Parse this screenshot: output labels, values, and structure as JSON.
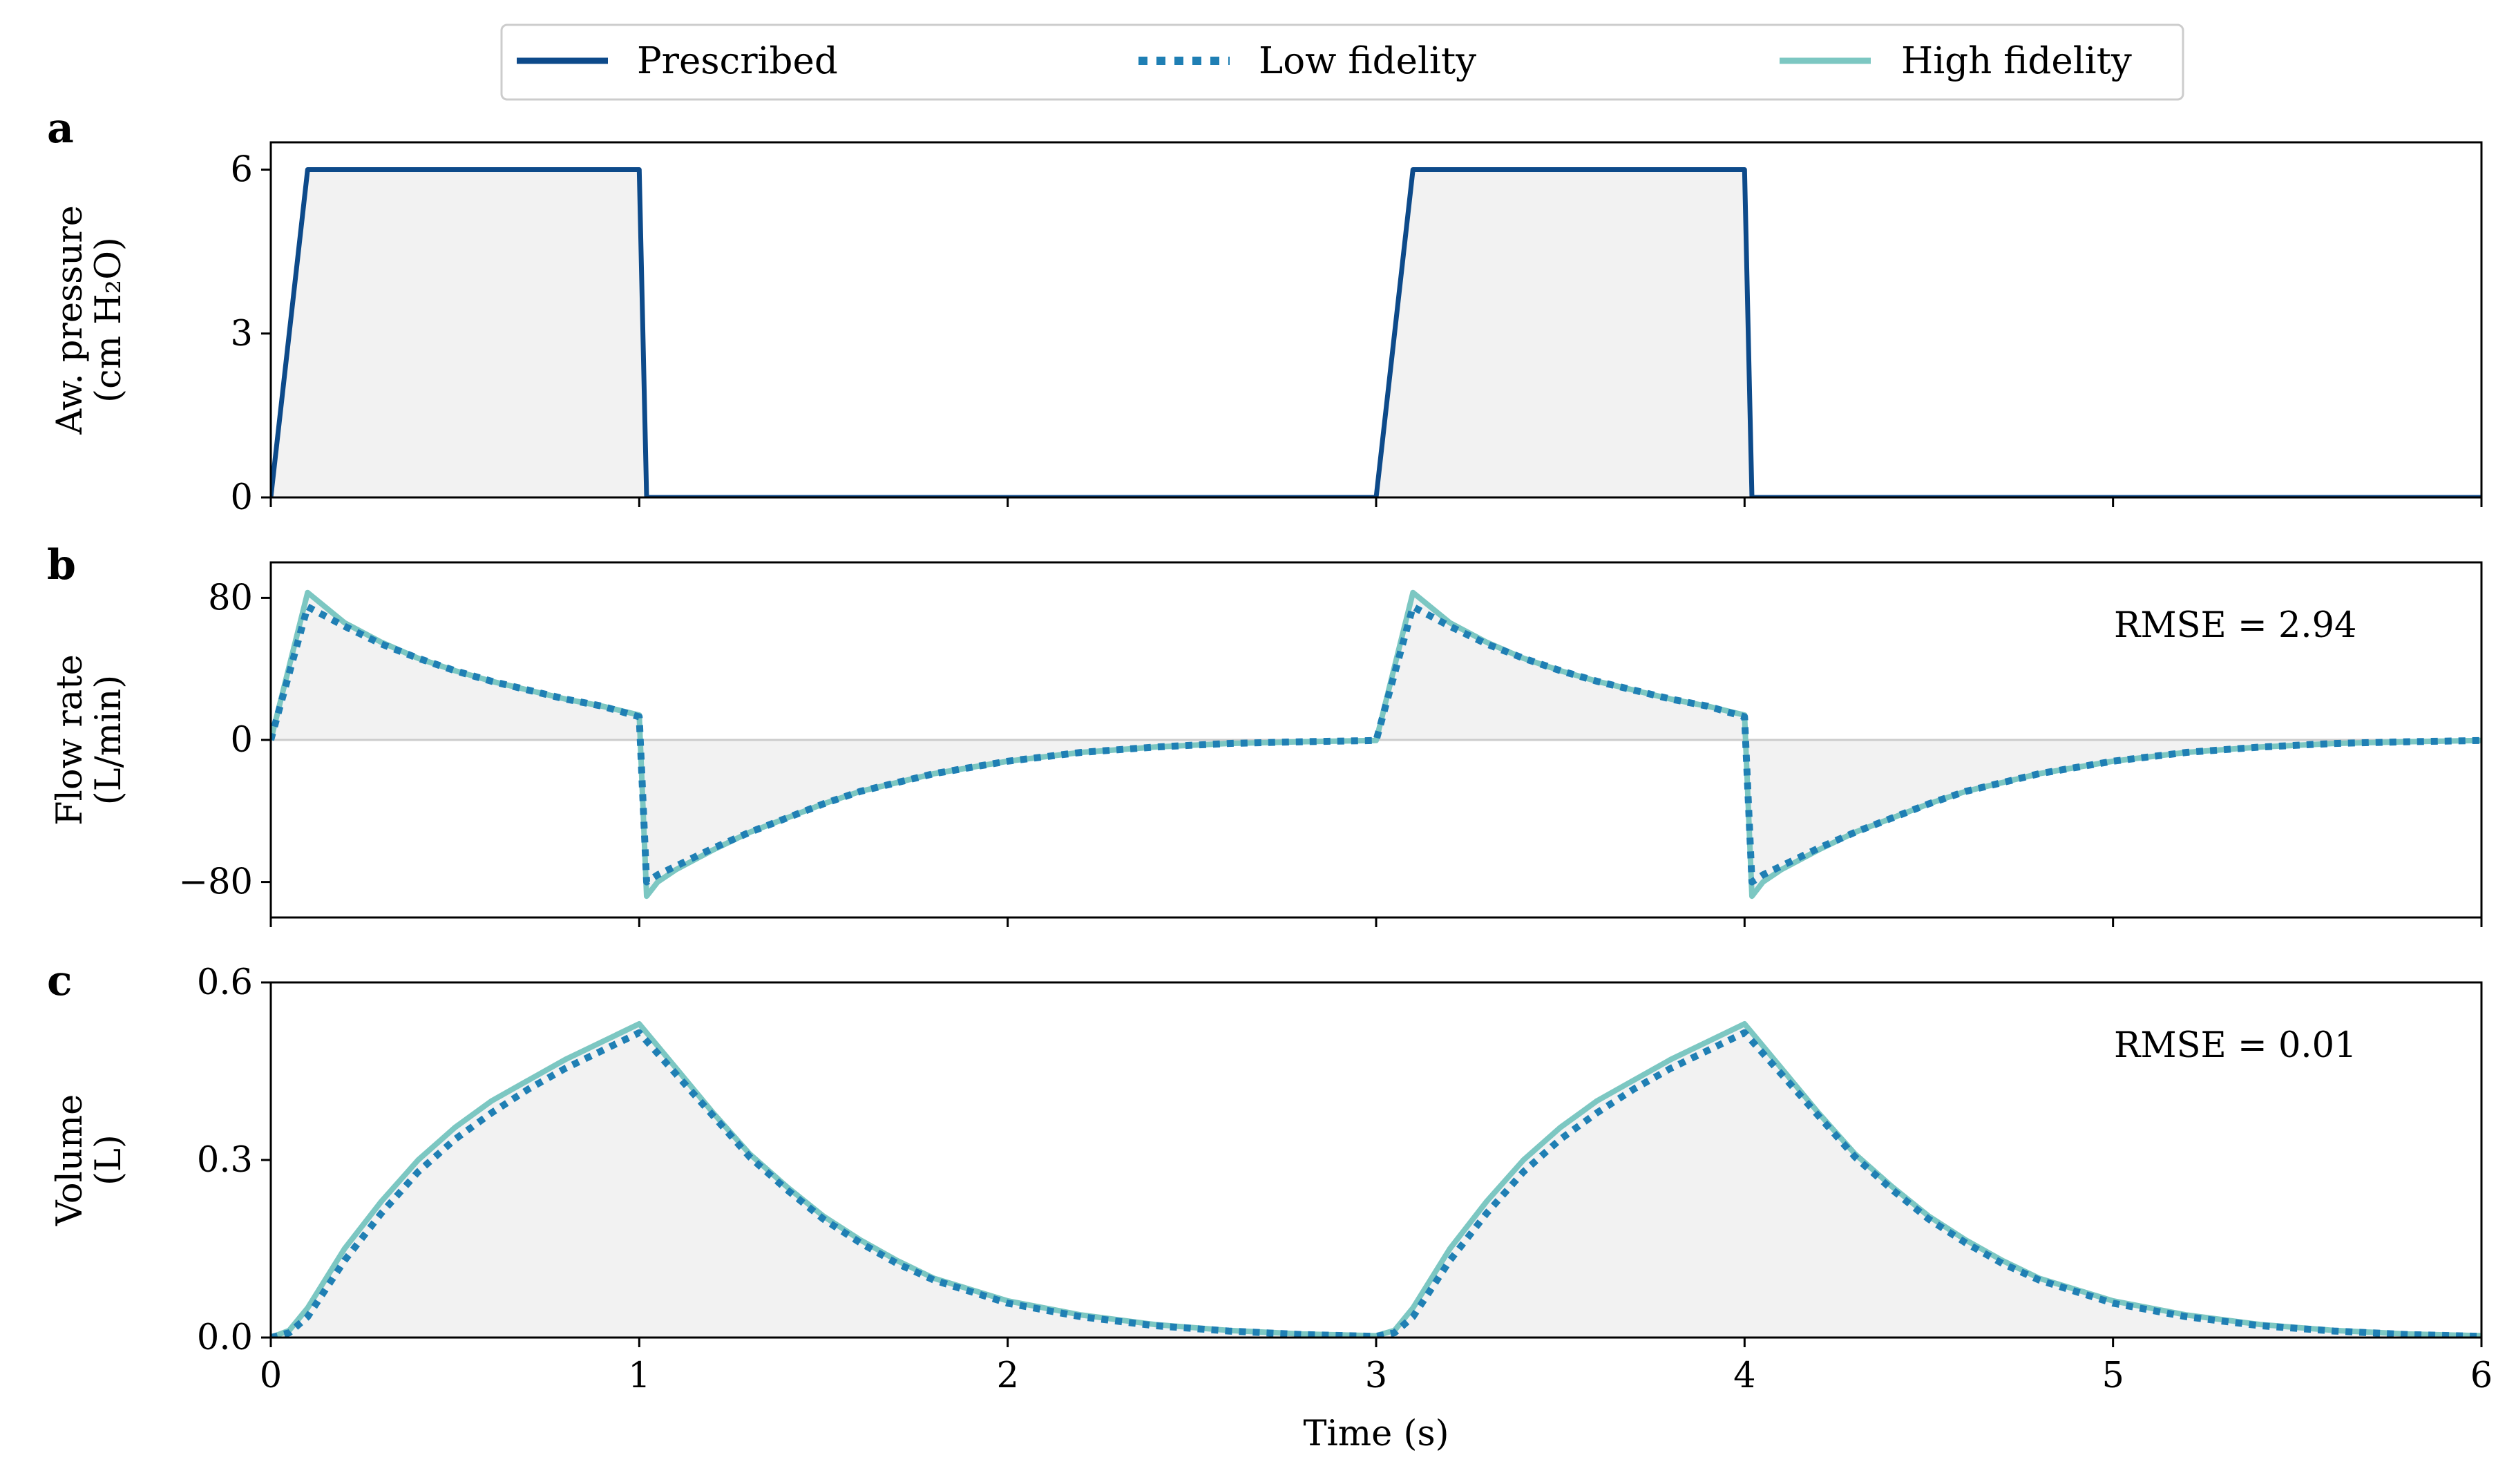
{
  "legend": {
    "prescribed": "Prescribed",
    "low": "Low fidelity",
    "high": "High fidelity"
  },
  "colors": {
    "prescribed": "#0d4a8a",
    "low": "#1f7fb4",
    "high": "#7cc7c2",
    "fill": "#f2f2f2",
    "zero_line": "#cccccc"
  },
  "xlabel": "Time (s)",
  "chart_data": [
    {
      "type": "line",
      "panel_letter": "a",
      "ylabel": "Aw. pressure (cm H₂O)",
      "ylabel_line1": "Aw. pressure",
      "ylabel_line2": "(cm H₂O)",
      "xlim": [
        0,
        6
      ],
      "ylim": [
        0,
        6.5
      ],
      "xticks": [
        0,
        1,
        2,
        3,
        4,
        5,
        6
      ],
      "yticks": [
        0,
        3,
        6
      ],
      "ytick_labels": [
        "0",
        "3",
        "6"
      ],
      "show_x_ticklabels": false,
      "rmse": "",
      "series": [
        {
          "name": "Prescribed",
          "style": "solid",
          "points": [
            [
              0,
              0
            ],
            [
              0.1,
              6
            ],
            [
              1.0,
              6
            ],
            [
              1.02,
              0
            ],
            [
              3.0,
              0
            ],
            [
              3.1,
              6
            ],
            [
              4.0,
              6
            ],
            [
              4.02,
              0
            ],
            [
              6.0,
              0
            ]
          ]
        }
      ]
    },
    {
      "type": "line",
      "panel_letter": "b",
      "ylabel": "Flow rate (L/min)",
      "ylabel_line1": "Flow rate",
      "ylabel_line2": "(L/min)",
      "xlim": [
        0,
        6
      ],
      "ylim": [
        -100,
        100
      ],
      "xticks": [
        0,
        1,
        2,
        3,
        4,
        5,
        6
      ],
      "yticks": [
        -80,
        0,
        80
      ],
      "ytick_labels": [
        "−80",
        "0",
        "80"
      ],
      "show_x_ticklabels": false,
      "zero_line": true,
      "rmse": "RMSE = 2.94",
      "series": [
        {
          "name": "High fidelity",
          "style": "solid",
          "points": [
            [
              0,
              0
            ],
            [
              0.1,
              83
            ],
            [
              0.2,
              66
            ],
            [
              0.3,
              55
            ],
            [
              0.4,
              46
            ],
            [
              0.5,
              39
            ],
            [
              0.6,
              33
            ],
            [
              0.7,
              28
            ],
            [
              0.8,
              23
            ],
            [
              0.9,
              19
            ],
            [
              1.0,
              14
            ],
            [
              1.02,
              -88
            ],
            [
              1.05,
              -80
            ],
            [
              1.1,
              -73
            ],
            [
              1.2,
              -62
            ],
            [
              1.3,
              -52
            ],
            [
              1.4,
              -44
            ],
            [
              1.5,
              -36
            ],
            [
              1.6,
              -29
            ],
            [
              1.7,
              -24
            ],
            [
              1.8,
              -19
            ],
            [
              2.0,
              -12
            ],
            [
              2.2,
              -7
            ],
            [
              2.4,
              -4
            ],
            [
              2.6,
              -2
            ],
            [
              2.8,
              -1
            ],
            [
              3.0,
              -0.3
            ],
            [
              3.1,
              83
            ],
            [
              3.2,
              66
            ],
            [
              3.3,
              55
            ],
            [
              3.4,
              46
            ],
            [
              3.5,
              39
            ],
            [
              3.6,
              33
            ],
            [
              3.7,
              28
            ],
            [
              3.8,
              23
            ],
            [
              3.9,
              19
            ],
            [
              4.0,
              14
            ],
            [
              4.02,
              -88
            ],
            [
              4.05,
              -80
            ],
            [
              4.1,
              -73
            ],
            [
              4.2,
              -62
            ],
            [
              4.3,
              -52
            ],
            [
              4.4,
              -44
            ],
            [
              4.5,
              -36
            ],
            [
              4.6,
              -29
            ],
            [
              4.7,
              -24
            ],
            [
              4.8,
              -19
            ],
            [
              5.0,
              -12
            ],
            [
              5.2,
              -7
            ],
            [
              5.4,
              -4
            ],
            [
              5.6,
              -2
            ],
            [
              5.8,
              -1
            ],
            [
              6.0,
              -0.3
            ]
          ]
        },
        {
          "name": "Low fidelity",
          "style": "dotted",
          "points": [
            [
              0,
              0
            ],
            [
              0.1,
              75
            ],
            [
              0.2,
              64
            ],
            [
              0.3,
              54
            ],
            [
              0.4,
              46
            ],
            [
              0.5,
              39
            ],
            [
              0.6,
              33
            ],
            [
              0.7,
              28
            ],
            [
              0.8,
              23
            ],
            [
              0.9,
              19
            ],
            [
              1.0,
              13
            ],
            [
              1.02,
              -80
            ],
            [
              1.05,
              -76
            ],
            [
              1.1,
              -71
            ],
            [
              1.2,
              -61
            ],
            [
              1.3,
              -52
            ],
            [
              1.4,
              -44
            ],
            [
              1.5,
              -36
            ],
            [
              1.6,
              -29
            ],
            [
              1.7,
              -24
            ],
            [
              1.8,
              -19
            ],
            [
              2.0,
              -12
            ],
            [
              2.2,
              -7
            ],
            [
              2.4,
              -4
            ],
            [
              2.6,
              -2
            ],
            [
              2.8,
              -1
            ],
            [
              3.0,
              -0.3
            ],
            [
              3.1,
              75
            ],
            [
              3.2,
              64
            ],
            [
              3.3,
              54
            ],
            [
              3.4,
              46
            ],
            [
              3.5,
              39
            ],
            [
              3.6,
              33
            ],
            [
              3.7,
              28
            ],
            [
              3.8,
              23
            ],
            [
              3.9,
              19
            ],
            [
              4.0,
              13
            ],
            [
              4.02,
              -80
            ],
            [
              4.05,
              -76
            ],
            [
              4.1,
              -71
            ],
            [
              4.2,
              -61
            ],
            [
              4.3,
              -52
            ],
            [
              4.4,
              -44
            ],
            [
              4.5,
              -36
            ],
            [
              4.6,
              -29
            ],
            [
              4.7,
              -24
            ],
            [
              4.8,
              -19
            ],
            [
              5.0,
              -12
            ],
            [
              5.2,
              -7
            ],
            [
              5.4,
              -4
            ],
            [
              5.6,
              -2
            ],
            [
              5.8,
              -1
            ],
            [
              6.0,
              -0.3
            ]
          ]
        }
      ]
    },
    {
      "type": "line",
      "panel_letter": "c",
      "ylabel": "Volume (L)",
      "ylabel_line1": "Volume",
      "ylabel_line2": "(L)",
      "xlim": [
        0,
        6
      ],
      "ylim": [
        0,
        0.6
      ],
      "xticks": [
        0,
        1,
        2,
        3,
        4,
        5,
        6
      ],
      "yticks": [
        0,
        0.3,
        0.6
      ],
      "ytick_labels": [
        "0.0",
        "0.3",
        "0.6"
      ],
      "xtick_labels": [
        "0",
        "1",
        "2",
        "3",
        "4",
        "5",
        "6"
      ],
      "show_x_ticklabels": true,
      "rmse": "RMSE = 0.01",
      "series": [
        {
          "name": "High fidelity",
          "style": "solid",
          "points": [
            [
              0,
              0
            ],
            [
              0.05,
              0.012
            ],
            [
              0.1,
              0.05
            ],
            [
              0.2,
              0.15
            ],
            [
              0.3,
              0.23
            ],
            [
              0.4,
              0.3
            ],
            [
              0.5,
              0.355
            ],
            [
              0.6,
              0.4
            ],
            [
              0.7,
              0.435
            ],
            [
              0.8,
              0.47
            ],
            [
              0.9,
              0.5
            ],
            [
              1.0,
              0.53
            ],
            [
              1.1,
              0.455
            ],
            [
              1.2,
              0.38
            ],
            [
              1.3,
              0.31
            ],
            [
              1.4,
              0.255
            ],
            [
              1.5,
              0.205
            ],
            [
              1.6,
              0.165
            ],
            [
              1.7,
              0.13
            ],
            [
              1.8,
              0.1
            ],
            [
              2.0,
              0.062
            ],
            [
              2.2,
              0.038
            ],
            [
              2.4,
              0.022
            ],
            [
              2.6,
              0.012
            ],
            [
              2.8,
              0.006
            ],
            [
              3.0,
              0.003
            ],
            [
              3.05,
              0.012
            ],
            [
              3.1,
              0.05
            ],
            [
              3.2,
              0.15
            ],
            [
              3.3,
              0.23
            ],
            [
              3.4,
              0.3
            ],
            [
              3.5,
              0.355
            ],
            [
              3.6,
              0.4
            ],
            [
              3.7,
              0.435
            ],
            [
              3.8,
              0.47
            ],
            [
              3.9,
              0.5
            ],
            [
              4.0,
              0.53
            ],
            [
              4.1,
              0.455
            ],
            [
              4.2,
              0.38
            ],
            [
              4.3,
              0.31
            ],
            [
              4.4,
              0.255
            ],
            [
              4.5,
              0.205
            ],
            [
              4.6,
              0.165
            ],
            [
              4.7,
              0.13
            ],
            [
              4.8,
              0.1
            ],
            [
              5.0,
              0.062
            ],
            [
              5.2,
              0.038
            ],
            [
              5.4,
              0.022
            ],
            [
              5.6,
              0.012
            ],
            [
              5.8,
              0.006
            ],
            [
              6.0,
              0.003
            ]
          ]
        },
        {
          "name": "Low fidelity",
          "style": "dotted",
          "points": [
            [
              0,
              0
            ],
            [
              0.05,
              0.008
            ],
            [
              0.1,
              0.035
            ],
            [
              0.2,
              0.13
            ],
            [
              0.3,
              0.21
            ],
            [
              0.4,
              0.28
            ],
            [
              0.5,
              0.335
            ],
            [
              0.6,
              0.38
            ],
            [
              0.7,
              0.42
            ],
            [
              0.8,
              0.455
            ],
            [
              0.9,
              0.485
            ],
            [
              1.0,
              0.515
            ],
            [
              1.1,
              0.445
            ],
            [
              1.2,
              0.375
            ],
            [
              1.3,
              0.305
            ],
            [
              1.4,
              0.25
            ],
            [
              1.5,
              0.2
            ],
            [
              1.6,
              0.16
            ],
            [
              1.7,
              0.125
            ],
            [
              1.8,
              0.097
            ],
            [
              2.0,
              0.058
            ],
            [
              2.2,
              0.035
            ],
            [
              2.4,
              0.02
            ],
            [
              2.6,
              0.011
            ],
            [
              2.8,
              0.005
            ],
            [
              3.0,
              0.002
            ],
            [
              3.05,
              0.008
            ],
            [
              3.1,
              0.035
            ],
            [
              3.2,
              0.13
            ],
            [
              3.3,
              0.21
            ],
            [
              3.4,
              0.28
            ],
            [
              3.5,
              0.335
            ],
            [
              3.6,
              0.38
            ],
            [
              3.7,
              0.42
            ],
            [
              3.8,
              0.455
            ],
            [
              3.9,
              0.485
            ],
            [
              4.0,
              0.515
            ],
            [
              4.1,
              0.445
            ],
            [
              4.2,
              0.375
            ],
            [
              4.3,
              0.305
            ],
            [
              4.4,
              0.25
            ],
            [
              4.5,
              0.2
            ],
            [
              4.6,
              0.16
            ],
            [
              4.7,
              0.125
            ],
            [
              4.8,
              0.097
            ],
            [
              5.0,
              0.058
            ],
            [
              5.2,
              0.035
            ],
            [
              5.4,
              0.02
            ],
            [
              5.6,
              0.011
            ],
            [
              5.8,
              0.005
            ],
            [
              6.0,
              0.002
            ]
          ]
        }
      ]
    }
  ]
}
